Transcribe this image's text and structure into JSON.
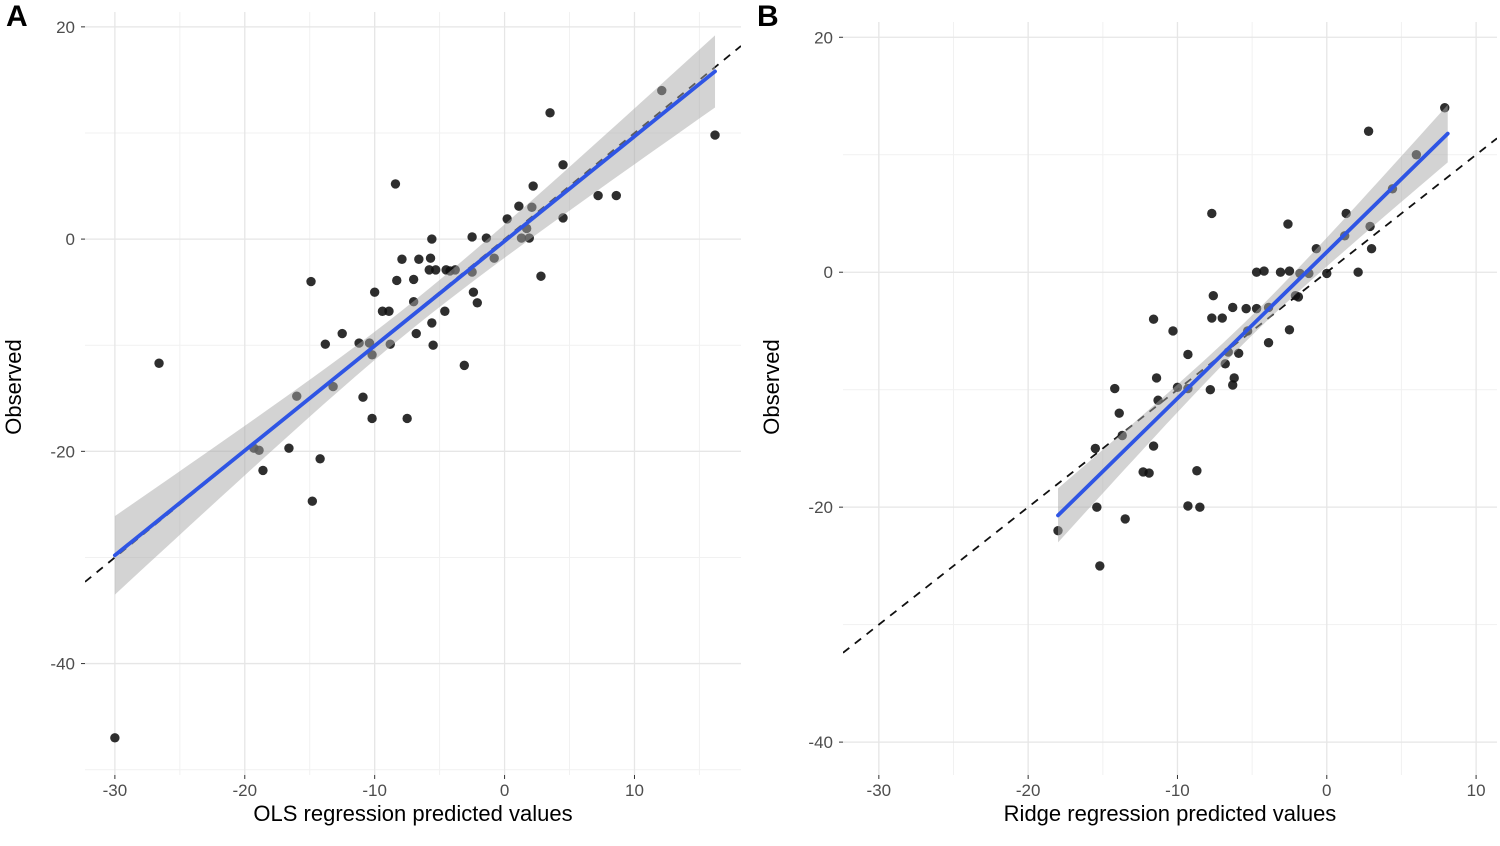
{
  "figure": {
    "background": "#ffffff",
    "colors": {
      "point": "#111111",
      "smooth_line": "#2F55E4",
      "ci_band": "#a8a8a8",
      "identity_line": "#111111",
      "grid_major": "#e6e6e6",
      "grid_minor": "#f1f1f1",
      "tick_label": "#4d4d4d",
      "tick_mark": "#333333"
    }
  },
  "chart_data": [
    {
      "type": "scatter",
      "panel_tag": "A",
      "xlabel": "OLS regression predicted values",
      "ylabel": "Observed",
      "x_ticks": [
        -30,
        -20,
        -10,
        0,
        10
      ],
      "y_ticks": [
        20,
        0,
        -20,
        -40
      ],
      "xlim": [
        -32.3,
        18.2
      ],
      "ylim": [
        -50.5,
        21.4
      ],
      "grid": "major+minor",
      "legend": "none",
      "points": [
        [
          12.1,
          14.0
        ],
        [
          3.5,
          11.9
        ],
        [
          16.2,
          9.8
        ],
        [
          4.5,
          7.0
        ],
        [
          -8.4,
          5.2
        ],
        [
          2.2,
          5.0
        ],
        [
          7.2,
          4.1
        ],
        [
          8.6,
          4.1
        ],
        [
          1.1,
          3.1
        ],
        [
          2.1,
          3.0
        ],
        [
          0.2,
          1.9
        ],
        [
          4.5,
          2.0
        ],
        [
          1.7,
          1.0
        ],
        [
          -5.6,
          0.0
        ],
        [
          -2.5,
          0.2
        ],
        [
          -1.4,
          0.1
        ],
        [
          1.3,
          0.1
        ],
        [
          1.9,
          0.1
        ],
        [
          -0.8,
          -1.8
        ],
        [
          -7.9,
          -1.9
        ],
        [
          -6.6,
          -1.9
        ],
        [
          -5.7,
          -1.8
        ],
        [
          -5.8,
          -2.9
        ],
        [
          -5.3,
          -2.9
        ],
        [
          -4.5,
          -2.9
        ],
        [
          -4.2,
          -3.0
        ],
        [
          -3.8,
          -2.9
        ],
        [
          -2.5,
          -3.1
        ],
        [
          2.8,
          -3.5
        ],
        [
          -14.9,
          -4.0
        ],
        [
          -8.3,
          -3.9
        ],
        [
          -7.0,
          -3.8
        ],
        [
          -10.0,
          -5.0
        ],
        [
          -2.4,
          -5.0
        ],
        [
          -7.0,
          -5.9
        ],
        [
          -2.1,
          -6.0
        ],
        [
          -9.4,
          -6.8
        ],
        [
          -8.9,
          -6.8
        ],
        [
          -4.6,
          -6.8
        ],
        [
          -5.6,
          -7.9
        ],
        [
          -6.8,
          -8.9
        ],
        [
          -12.5,
          -8.9
        ],
        [
          -13.8,
          -9.9
        ],
        [
          -11.2,
          -9.8
        ],
        [
          -10.4,
          -9.8
        ],
        [
          -8.8,
          -9.9
        ],
        [
          -5.5,
          -10.0
        ],
        [
          -10.2,
          -10.9
        ],
        [
          -26.6,
          -11.7
        ],
        [
          -3.1,
          -11.9
        ],
        [
          -13.2,
          -13.9
        ],
        [
          -16.0,
          -14.8
        ],
        [
          -10.9,
          -14.9
        ],
        [
          -10.2,
          -16.9
        ],
        [
          -7.5,
          -16.9
        ],
        [
          -19.3,
          -19.7
        ],
        [
          -18.9,
          -19.9
        ],
        [
          -16.6,
          -19.7
        ],
        [
          -14.2,
          -20.7
        ],
        [
          -18.6,
          -21.8
        ],
        [
          -14.8,
          -24.7
        ],
        [
          -30.0,
          -47.0
        ]
      ],
      "regression_line": {
        "from": [
          -30.0,
          -29.8
        ],
        "to": [
          16.2,
          15.8
        ]
      },
      "ci_band": {
        "center_x": -7,
        "half_width_center": 1.25,
        "half_width_left": 3.7,
        "half_width_right": 3.4
      },
      "identity_line": {
        "slope": 1,
        "intercept": 0,
        "style": "dashed"
      }
    },
    {
      "type": "scatter",
      "panel_tag": "B",
      "xlabel": "Ridge regression predicted values",
      "ylabel": "Observed",
      "x_ticks": [
        -30,
        -20,
        -10,
        0,
        10
      ],
      "y_ticks": [
        20,
        0,
        -20,
        -40
      ],
      "xlim": [
        -32.4,
        11.4
      ],
      "ylim": [
        -42.8,
        21.3
      ],
      "grid": "major+minor",
      "legend": "none",
      "points": [
        [
          7.9,
          14.0
        ],
        [
          2.8,
          12.0
        ],
        [
          6.0,
          10.0
        ],
        [
          4.4,
          7.1
        ],
        [
          -7.7,
          5.0
        ],
        [
          1.3,
          5.0
        ],
        [
          -2.6,
          4.1
        ],
        [
          2.9,
          3.9
        ],
        [
          1.2,
          3.1
        ],
        [
          -0.7,
          2.0
        ],
        [
          3.0,
          2.0
        ],
        [
          -4.7,
          0.0
        ],
        [
          -4.2,
          0.1
        ],
        [
          -3.1,
          0.0
        ],
        [
          -2.5,
          0.1
        ],
        [
          -1.8,
          -0.1
        ],
        [
          -1.2,
          -0.1
        ],
        [
          0.0,
          -0.1
        ],
        [
          2.1,
          0.0
        ],
        [
          -7.6,
          -2.0
        ],
        [
          -2.1,
          -2.0
        ],
        [
          -1.9,
          -2.1
        ],
        [
          -6.3,
          -3.0
        ],
        [
          -5.4,
          -3.1
        ],
        [
          -4.7,
          -3.1
        ],
        [
          -3.9,
          -3.0
        ],
        [
          -11.6,
          -4.0
        ],
        [
          -7.7,
          -3.9
        ],
        [
          -7.0,
          -3.9
        ],
        [
          -10.3,
          -5.0
        ],
        [
          -5.3,
          -5.0
        ],
        [
          -2.5,
          -4.9
        ],
        [
          -3.9,
          -6.0
        ],
        [
          -9.3,
          -7.0
        ],
        [
          -6.6,
          -6.8
        ],
        [
          -5.9,
          -6.9
        ],
        [
          -6.8,
          -7.8
        ],
        [
          -11.4,
          -9.0
        ],
        [
          -6.2,
          -9.0
        ],
        [
          -6.3,
          -9.6
        ],
        [
          -14.2,
          -9.9
        ],
        [
          -10.0,
          -9.8
        ],
        [
          -9.3,
          -9.9
        ],
        [
          -7.8,
          -10.0
        ],
        [
          -11.3,
          -10.9
        ],
        [
          -13.9,
          -12.0
        ],
        [
          -13.7,
          -13.9
        ],
        [
          -15.5,
          -15.0
        ],
        [
          -11.6,
          -14.8
        ],
        [
          -12.3,
          -17.0
        ],
        [
          -11.9,
          -17.1
        ],
        [
          -8.7,
          -16.9
        ],
        [
          -15.4,
          -20.0
        ],
        [
          -9.3,
          -19.9
        ],
        [
          -8.5,
          -20.0
        ],
        [
          -13.5,
          -21.0
        ],
        [
          -18.0,
          -22.0
        ],
        [
          -15.2,
          -25.0
        ]
      ],
      "regression_line": {
        "from": [
          -18.0,
          -20.7
        ],
        "to": [
          8.1,
          11.8
        ]
      },
      "ci_band": {
        "center_x": -5,
        "half_width_center": 0.85,
        "half_width_left": 2.3,
        "half_width_right": 2.45
      },
      "identity_line": {
        "slope": 1,
        "intercept": 0,
        "style": "dashed"
      }
    }
  ]
}
